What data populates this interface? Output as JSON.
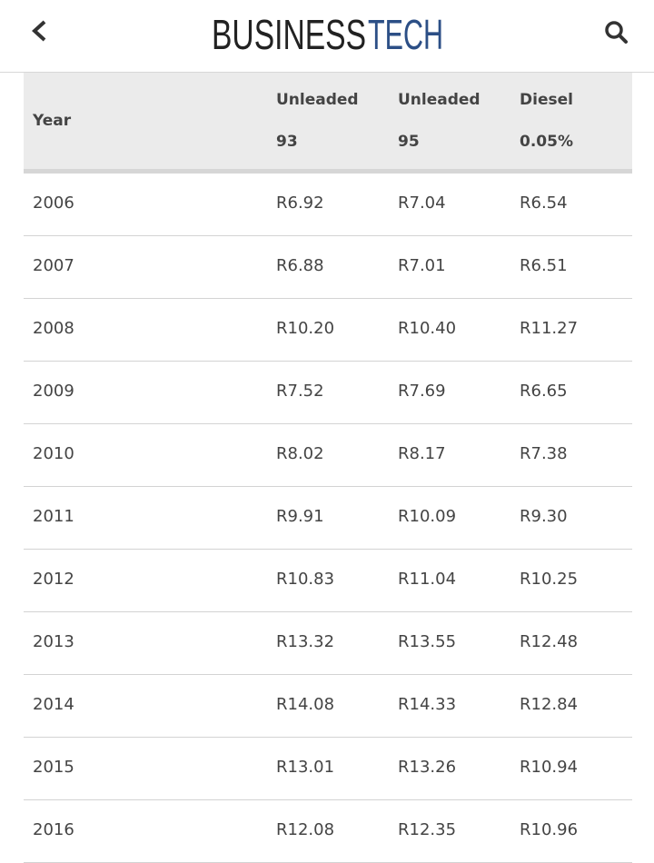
{
  "header": {
    "logo": [
      "BUSINESS",
      "TECH"
    ]
  },
  "table": {
    "columns": [
      [
        "Year"
      ],
      [
        "Unleaded",
        "93"
      ],
      [
        "Unleaded",
        "95"
      ],
      [
        "Diesel",
        "0.05%"
      ]
    ],
    "rows": [
      [
        "2006",
        "R6.92",
        "R7.04",
        "R6.54"
      ],
      [
        "2007",
        "R6.88",
        "R7.01",
        "R6.51"
      ],
      [
        "2008",
        "R10.20",
        "R10.40",
        "R11.27"
      ],
      [
        "2009",
        "R7.52",
        "R7.69",
        "R6.65"
      ],
      [
        "2010",
        "R8.02",
        "R8.17",
        "R7.38"
      ],
      [
        "2011",
        "R9.91",
        "R10.09",
        "R9.30"
      ],
      [
        "2012",
        "R10.83",
        "R11.04",
        "R10.25"
      ],
      [
        "2013",
        "R13.32",
        "R13.55",
        "R12.48"
      ],
      [
        "2014",
        "R14.08",
        "R14.33",
        "R12.84"
      ],
      [
        "2015",
        "R13.01",
        "R13.26",
        "R10.94"
      ],
      [
        "2016",
        "R12.08",
        "R12.35",
        "R10.96"
      ]
    ]
  }
}
